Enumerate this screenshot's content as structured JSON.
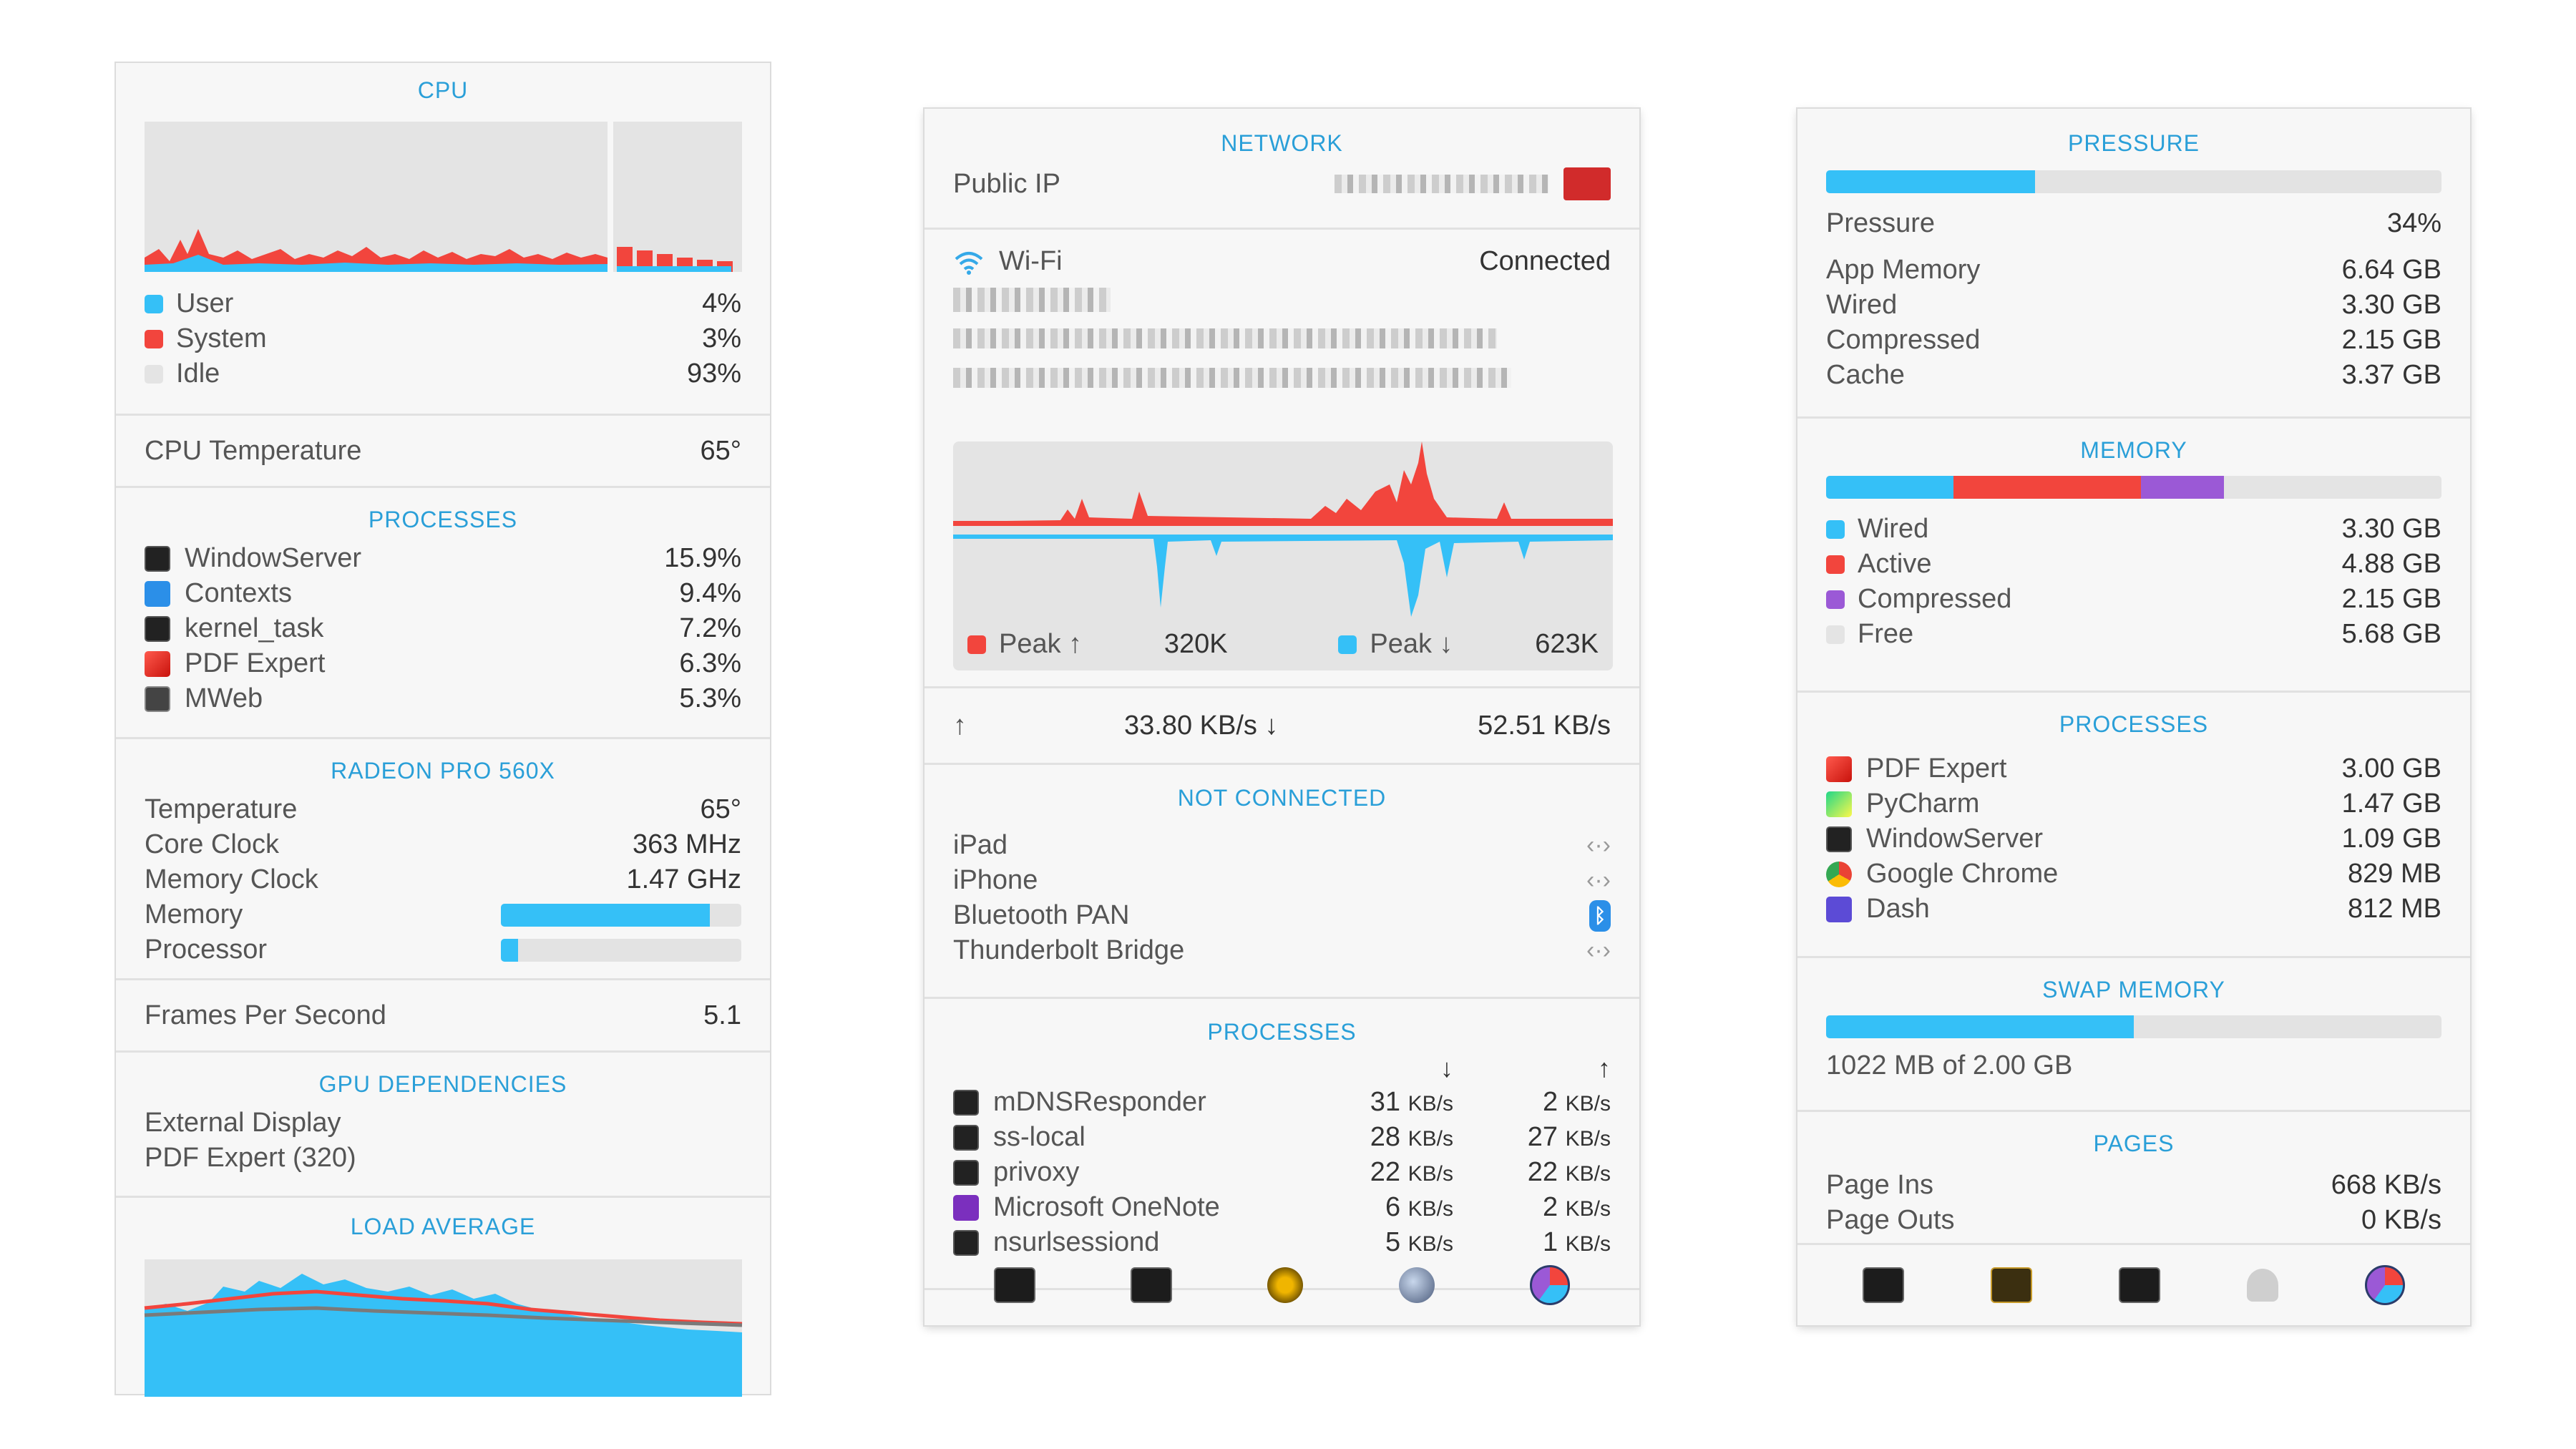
{
  "cpu": {
    "title": "CPU",
    "legend": [
      {
        "label": "User",
        "value": "4%",
        "color": "#35c0f7"
      },
      {
        "label": "System",
        "value": "3%",
        "color": "#f2453d"
      },
      {
        "label": "Idle",
        "value": "93%",
        "color": "#e4e4e4"
      }
    ],
    "temperature_label": "CPU Temperature",
    "temperature_value": "65°",
    "processes_title": "PROCESSES",
    "processes": [
      {
        "name": "WindowServer",
        "value": "15.9%",
        "icon": "terminal-icon"
      },
      {
        "name": "Contexts",
        "value": "9.4%",
        "icon": "contexts-app-icon"
      },
      {
        "name": "kernel_task",
        "value": "7.2%",
        "icon": "terminal-icon"
      },
      {
        "name": "PDF Expert",
        "value": "6.3%",
        "icon": "pdf-expert-icon"
      },
      {
        "name": "MWeb",
        "value": "5.3%",
        "icon": "mweb-icon"
      }
    ],
    "gpu_title": "RADEON PRO 560X",
    "gpu_rows": [
      {
        "label": "Temperature",
        "value": "65°"
      },
      {
        "label": "Core Clock",
        "value": "363 MHz"
      },
      {
        "label": "Memory Clock",
        "value": "1.47 GHz"
      }
    ],
    "gpu_memory_label": "Memory",
    "gpu_memory_level": 0.87,
    "gpu_processor_label": "Processor",
    "gpu_processor_level": 0.07,
    "fps_label": "Frames Per Second",
    "fps_value": "5.1",
    "gpu_deps_title": "GPU DEPENDENCIES",
    "gpu_deps": [
      "External Display",
      "PDF Expert (320)"
    ],
    "load_title": "LOAD AVERAGE"
  },
  "network": {
    "title": "NETWORK",
    "public_ip_label": "Public IP",
    "wifi_label": "Wi-Fi",
    "wifi_status": "Connected",
    "peak_up_label": "Peak ↑",
    "peak_up_value": "320K",
    "peak_down_label": "Peak ↓",
    "peak_down_value": "623K",
    "up_arrow": "↑",
    "up_rate": "33.80 KB/s ↓",
    "down_rate": "52.51 KB/s",
    "not_connected_title": "NOT CONNECTED",
    "interfaces": [
      {
        "name": "iPad",
        "icon": "ethernet-arrows-icon"
      },
      {
        "name": "iPhone",
        "icon": "ethernet-arrows-icon"
      },
      {
        "name": "Bluetooth PAN",
        "icon": "bluetooth-icon"
      },
      {
        "name": "Thunderbolt Bridge",
        "icon": "ethernet-arrows-icon"
      }
    ],
    "processes_title": "PROCESSES",
    "col_down": "↓",
    "col_up": "↑",
    "unit": "KB/s",
    "processes": [
      {
        "name": "mDNSResponder",
        "down": "31",
        "up": "2",
        "icon": "terminal-icon"
      },
      {
        "name": "ss-local",
        "down": "28",
        "up": "27",
        "icon": "terminal-icon"
      },
      {
        "name": "privoxy",
        "down": "22",
        "up": "22",
        "icon": "terminal-icon"
      },
      {
        "name": "Microsoft OneNote",
        "down": "6",
        "up": "2",
        "icon": "onenote-icon"
      },
      {
        "name": "nsurlsessiond",
        "down": "5",
        "up": "1",
        "icon": "terminal-icon"
      }
    ],
    "toolbar": [
      "activity-monitor-icon",
      "terminal-icon",
      "network-utility-icon",
      "globe-icon",
      "istat-icon"
    ]
  },
  "memory": {
    "pressure_title": "PRESSURE",
    "pressure_level": 0.34,
    "pressure_label": "Pressure",
    "pressure_value": "34%",
    "stats": [
      {
        "label": "App Memory",
        "value": "6.64 GB"
      },
      {
        "label": "Wired",
        "value": "3.30 GB"
      },
      {
        "label": "Compressed",
        "value": "2.15 GB"
      },
      {
        "label": "Cache",
        "value": "3.37 GB"
      }
    ],
    "memory_title": "MEMORY",
    "segments": [
      {
        "label": "Wired",
        "value": "3.30 GB",
        "color": "#35c0f7",
        "fraction": 0.207
      },
      {
        "label": "Active",
        "value": "4.88 GB",
        "color": "#f2453d",
        "fraction": 0.305
      },
      {
        "label": "Compressed",
        "value": "2.15 GB",
        "color": "#9b59d6",
        "fraction": 0.134
      },
      {
        "label": "Free",
        "value": "5.68 GB",
        "color": "#e4e4e4",
        "fraction": 0.354
      }
    ],
    "processes_title": "PROCESSES",
    "processes": [
      {
        "name": "PDF Expert",
        "value": "3.00 GB",
        "icon": "pdf-expert-icon"
      },
      {
        "name": "PyCharm",
        "value": "1.47 GB",
        "icon": "pycharm-icon"
      },
      {
        "name": "WindowServer",
        "value": "1.09 GB",
        "icon": "terminal-icon"
      },
      {
        "name": "Google Chrome",
        "value": "829 MB",
        "icon": "chrome-icon"
      },
      {
        "name": "Dash",
        "value": "812 MB",
        "icon": "dash-icon"
      }
    ],
    "swap_title": "SWAP MEMORY",
    "swap_level": 0.5,
    "swap_text": "1022 MB of 2.00 GB",
    "pages_title": "PAGES",
    "pages": [
      {
        "label": "Page Ins",
        "value": "668 KB/s"
      },
      {
        "label": "Page Outs",
        "value": "0 KB/s"
      }
    ],
    "toolbar": [
      "activity-monitor-icon",
      "console-icon",
      "terminal-icon",
      "cleaner-icon",
      "istat-icon"
    ]
  }
}
